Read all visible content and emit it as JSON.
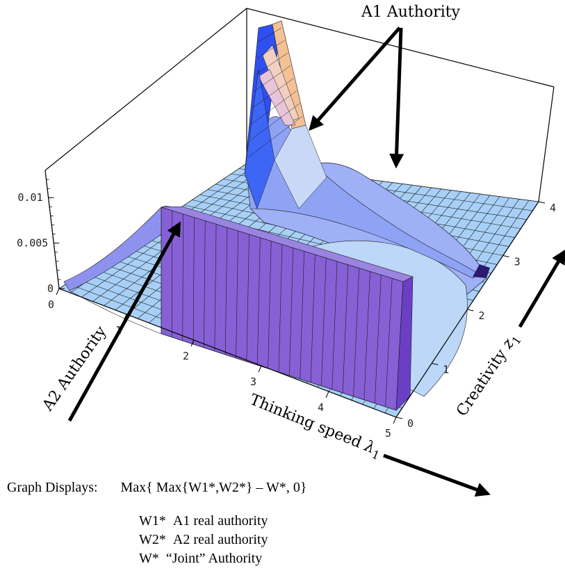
{
  "chart_data": {
    "type": "surface3d",
    "title": "",
    "x_axis": {
      "label": "Thinking speed",
      "symbol": "λ",
      "subscript": "1",
      "ticks": [
        "0",
        "1",
        "2",
        "3",
        "4",
        "5"
      ],
      "range": [
        0,
        5
      ]
    },
    "y_axis": {
      "label": "Creativity",
      "symbol": "z",
      "subscript": "1",
      "ticks": [
        "0",
        "1",
        "2",
        "3",
        "4"
      ],
      "range": [
        0,
        4
      ]
    },
    "z_axis": {
      "label": "",
      "ticks": [
        "0",
        "0.005",
        "0.01"
      ],
      "values": [
        0,
        0.005,
        0.01
      ],
      "range": [
        0,
        0.013
      ]
    },
    "annotations": [
      {
        "text": "A1  Authority",
        "target": "narrow ridge / plateau near low creativity"
      },
      {
        "text": "A2 Authority",
        "target": "flat purple plateau at low creativity"
      }
    ],
    "colors": {
      "surface": "#9ec9f5",
      "a2_plateau": "#8a64d6",
      "ridge": "#3b5cf0",
      "peak_warm": "#f3b98a",
      "grid_line": "#1a1a1a"
    }
  },
  "caption": {
    "prefix": "Graph Displays:",
    "formula": "Max{ Max{W1*,W2*} – W*, 0}",
    "legend": [
      {
        "key": "W1*",
        "desc": "A1 real authority"
      },
      {
        "key": "W2*",
        "desc": "A2 real authority"
      },
      {
        "key": "W*",
        "desc": "“Joint” Authority"
      }
    ]
  }
}
